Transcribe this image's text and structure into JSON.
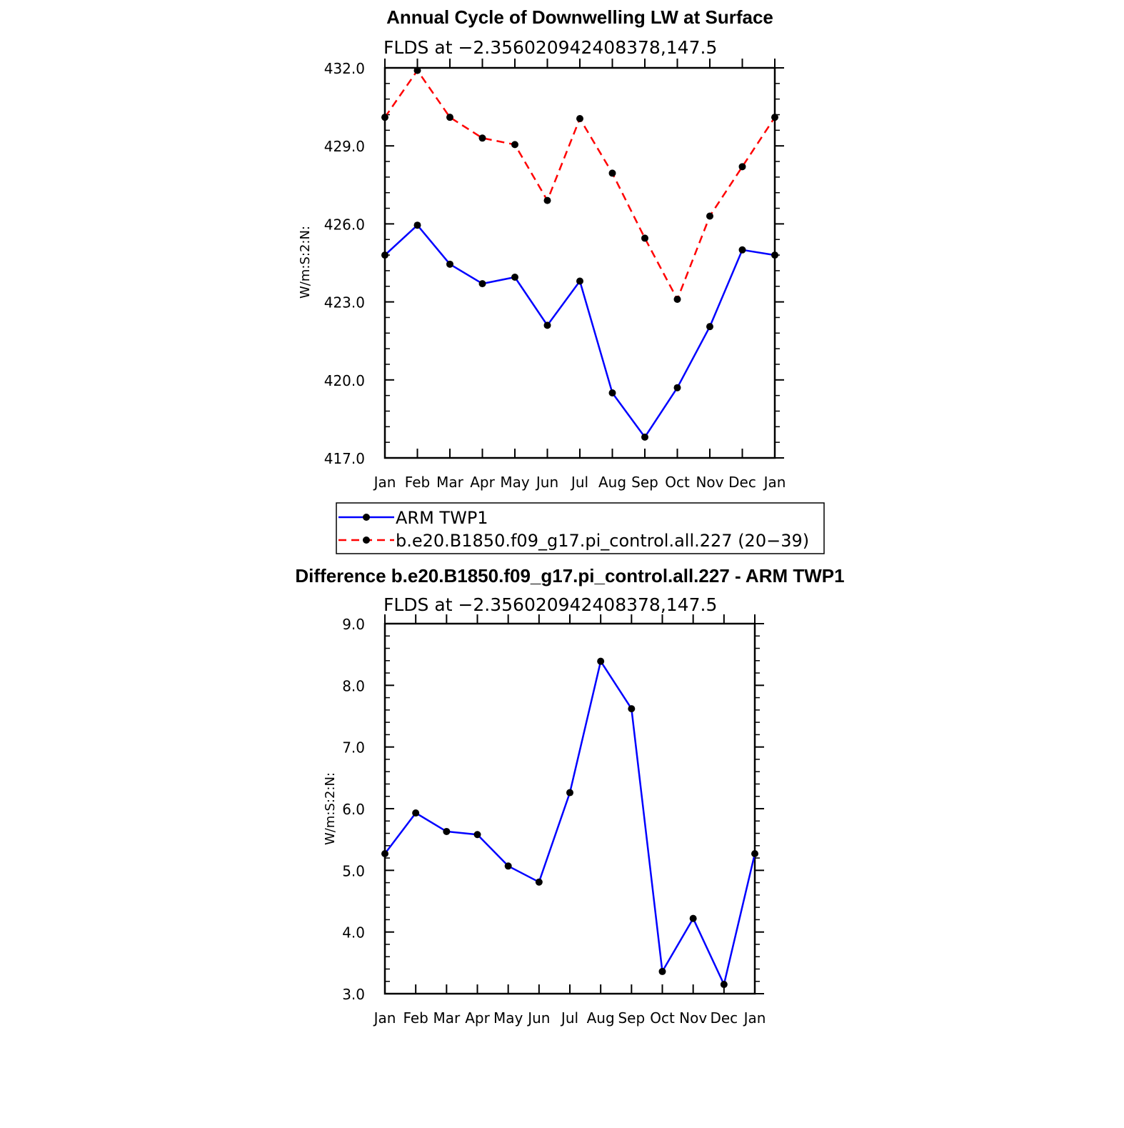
{
  "chart_data": [
    {
      "type": "line",
      "title": "Annual Cycle of Downwelling LW at Surface",
      "subtitle": "FLDS at −2.356020942408378,147.5",
      "ylabel": "W/m:S:2:N:",
      "ylim": [
        417.0,
        432.0
      ],
      "yticks": [
        417.0,
        420.0,
        423.0,
        426.0,
        429.0,
        432.0
      ],
      "ytick_labels": [
        "417.0",
        "420.0",
        "423.0",
        "426.0",
        "429.0",
        "432.0"
      ],
      "categories": [
        "Jan",
        "Feb",
        "Mar",
        "Apr",
        "May",
        "Jun",
        "Jul",
        "Aug",
        "Sep",
        "Oct",
        "Nov",
        "Dec",
        "Jan"
      ],
      "grid": false,
      "legend_position": "below",
      "series": [
        {
          "name": "ARM TWP1",
          "color": "#0000ff",
          "dash": "solid",
          "marker": "dot",
          "values": [
            424.8,
            425.95,
            424.45,
            423.7,
            423.95,
            422.1,
            423.8,
            419.5,
            417.8,
            419.7,
            422.05,
            425.0,
            424.8
          ]
        },
        {
          "name": "b.e20.B1850.f09_g17.pi_control.all.227 (20−39)",
          "color": "#ff0000",
          "dash": "dashed",
          "marker": "dot",
          "values": [
            430.1,
            431.9,
            430.1,
            429.3,
            429.05,
            426.9,
            430.05,
            427.95,
            425.45,
            423.1,
            426.3,
            428.2,
            430.1
          ]
        }
      ]
    },
    {
      "type": "line",
      "title": "Difference b.e20.B1850.f09_g17.pi_control.all.227 - ARM TWP1",
      "subtitle": "FLDS at −2.356020942408378,147.5",
      "ylabel": "W/m:S:2:N:",
      "ylim": [
        3.0,
        9.0
      ],
      "yticks": [
        3.0,
        4.0,
        5.0,
        6.0,
        7.0,
        8.0,
        9.0
      ],
      "ytick_labels": [
        "3.0",
        "4.0",
        "5.0",
        "6.0",
        "7.0",
        "8.0",
        "9.0"
      ],
      "categories": [
        "Jan",
        "Feb",
        "Mar",
        "Apr",
        "May",
        "Jun",
        "Jul",
        "Aug",
        "Sep",
        "Oct",
        "Nov",
        "Dec",
        "Jan"
      ],
      "grid": false,
      "series": [
        {
          "color": "#0000ff",
          "dash": "solid",
          "marker": "dot",
          "values": [
            5.27,
            5.93,
            5.63,
            5.58,
            5.07,
            4.81,
            6.26,
            8.39,
            7.62,
            3.36,
            4.22,
            3.15,
            5.27
          ]
        }
      ]
    }
  ]
}
